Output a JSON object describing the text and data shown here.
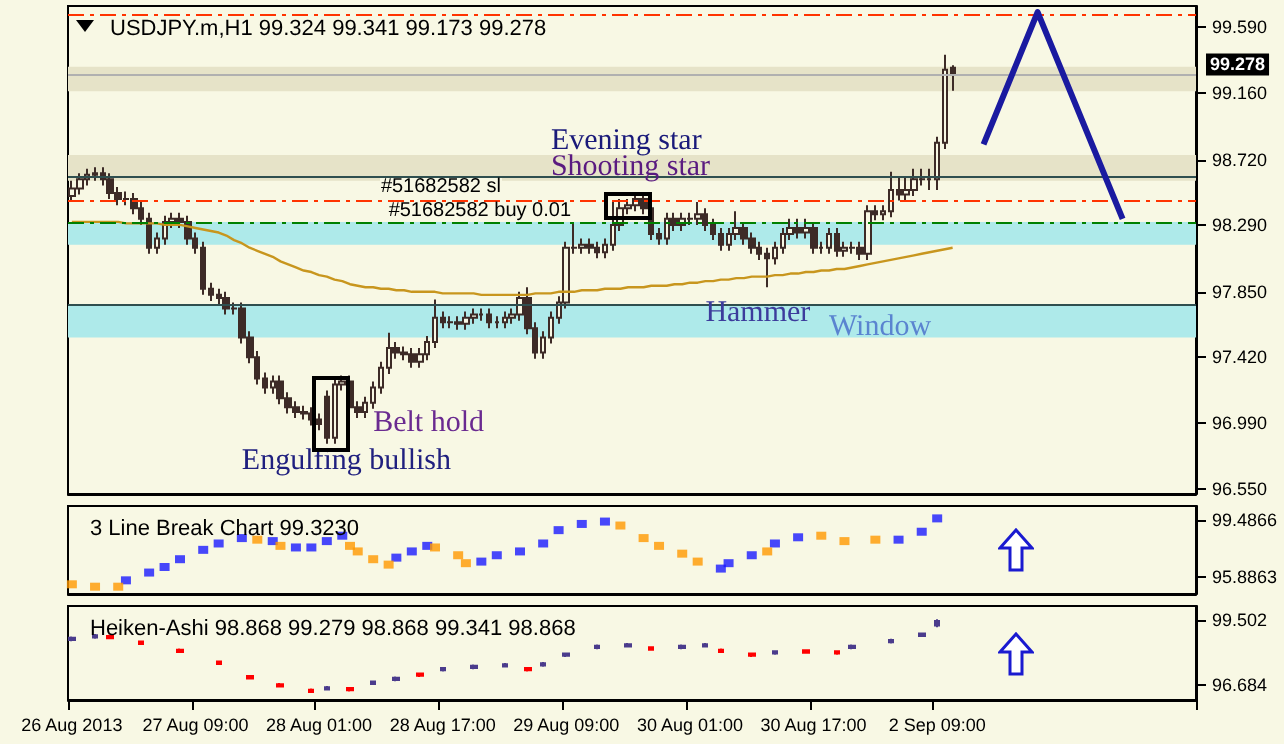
{
  "chart_data": [
    {
      "type": "candlestick",
      "title": "USDJPY.m,H1 99.324 99.341 99.173 99.278",
      "color": "#3d2b27",
      "categories": [
        null,
        null,
        null,
        null,
        null,
        null,
        null,
        null,
        null,
        null,
        null,
        null,
        null,
        null,
        null,
        null,
        null,
        null,
        null,
        null,
        null,
        null,
        null,
        null,
        null,
        null,
        null,
        null,
        null,
        null,
        null,
        null,
        null,
        null,
        null,
        null,
        null,
        null,
        null,
        null,
        null,
        null,
        null,
        null,
        null,
        null,
        null,
        null,
        null,
        null,
        null,
        null,
        null,
        null,
        null,
        null,
        null,
        null,
        null,
        null,
        null,
        null,
        null,
        null,
        null,
        null,
        null,
        null,
        null,
        null,
        null,
        null,
        null,
        null,
        null,
        null,
        null,
        null,
        null,
        null,
        null,
        null,
        null,
        null,
        null,
        null,
        null,
        null,
        null,
        null,
        null,
        null,
        null,
        null,
        null,
        null,
        null,
        null,
        null,
        null,
        null,
        null,
        null,
        null,
        null,
        null,
        null,
        null,
        null,
        null,
        null,
        null,
        null,
        null,
        null,
        null,
        null,
        null,
        null,
        null,
        null,
        null,
        null,
        null,
        null,
        null,
        null,
        null,
        null,
        null,
        null,
        null,
        null,
        null,
        null,
        null,
        null,
        null,
        null,
        null,
        null,
        null,
        null,
        null,
        null,
        null
      ],
      "ohlc": [
        [
          98.48,
          98.58,
          98.44,
          98.53
        ],
        [
          98.53,
          98.63,
          98.49,
          98.59
        ],
        [
          98.59,
          98.66,
          98.55,
          98.62
        ],
        [
          98.62,
          98.67,
          98.58,
          98.63
        ],
        [
          98.63,
          98.67,
          98.55,
          98.59
        ],
        [
          98.59,
          98.63,
          98.46,
          98.5
        ],
        [
          98.5,
          98.54,
          98.42,
          98.46
        ],
        [
          98.46,
          98.51,
          98.42,
          98.46
        ],
        [
          98.46,
          98.5,
          98.36,
          98.4
        ],
        [
          98.4,
          98.44,
          98.29,
          98.33
        ],
        [
          98.33,
          98.37,
          98.1,
          98.14
        ],
        [
          98.14,
          98.24,
          98.1,
          98.2
        ],
        [
          98.2,
          98.35,
          98.16,
          98.31
        ],
        [
          98.31,
          98.37,
          98.27,
          98.33
        ],
        [
          98.33,
          98.37,
          98.27,
          98.31
        ],
        [
          98.31,
          98.35,
          98.16,
          98.2
        ],
        [
          98.2,
          98.24,
          98.1,
          98.14
        ],
        [
          98.14,
          98.18,
          97.83,
          97.87
        ],
        [
          97.87,
          97.91,
          97.79,
          97.83
        ],
        [
          97.83,
          97.87,
          97.77,
          97.81
        ],
        [
          97.81,
          97.85,
          97.7,
          97.74
        ],
        [
          97.74,
          97.78,
          97.7,
          97.74
        ],
        [
          97.74,
          97.78,
          97.51,
          97.55
        ],
        [
          97.55,
          97.59,
          97.38,
          97.42
        ],
        [
          97.42,
          97.46,
          97.24,
          97.28
        ],
        [
          97.28,
          97.32,
          97.18,
          97.22
        ],
        [
          97.22,
          97.3,
          97.18,
          97.26
        ],
        [
          97.26,
          97.3,
          97.11,
          97.15
        ],
        [
          97.15,
          97.19,
          97.05,
          97.09
        ],
        [
          97.09,
          97.13,
          97.02,
          97.06
        ],
        [
          97.06,
          97.1,
          97.01,
          97.05
        ],
        [
          97.05,
          97.09,
          96.97,
          97.01
        ],
        [
          97.01,
          97.05,
          96.94,
          96.98
        ],
        [
          97.16,
          97.2,
          96.85,
          96.89
        ],
        [
          96.89,
          97.28,
          96.85,
          97.24
        ],
        [
          97.24,
          97.3,
          97.2,
          97.26
        ],
        [
          97.26,
          97.3,
          97.05,
          97.09
        ],
        [
          97.09,
          97.13,
          97.02,
          97.06
        ],
        [
          97.06,
          97.16,
          97.02,
          97.12
        ],
        [
          97.12,
          97.26,
          97.08,
          97.22
        ],
        [
          97.22,
          97.39,
          97.18,
          97.35
        ],
        [
          97.35,
          97.58,
          97.31,
          97.48
        ],
        [
          97.48,
          97.52,
          97.41,
          97.45
        ],
        [
          97.45,
          97.49,
          97.4,
          97.44
        ],
        [
          97.44,
          97.48,
          97.35,
          97.39
        ],
        [
          97.39,
          97.48,
          97.35,
          97.44
        ],
        [
          97.44,
          97.56,
          97.4,
          97.52
        ],
        [
          97.52,
          97.8,
          97.48,
          97.68
        ],
        [
          97.68,
          97.72,
          97.61,
          97.65
        ],
        [
          97.65,
          97.69,
          97.61,
          97.65
        ],
        [
          97.65,
          97.69,
          97.6,
          97.64
        ],
        [
          97.64,
          97.72,
          97.6,
          97.68
        ],
        [
          97.68,
          97.74,
          97.64,
          97.7
        ],
        [
          97.7,
          97.74,
          97.66,
          97.7
        ],
        [
          97.7,
          97.74,
          97.61,
          97.65
        ],
        [
          97.65,
          97.69,
          97.61,
          97.65
        ],
        [
          97.65,
          97.72,
          97.61,
          97.68
        ],
        [
          97.68,
          97.74,
          97.64,
          97.7
        ],
        [
          97.7,
          97.85,
          97.66,
          97.81
        ],
        [
          97.81,
          97.88,
          97.57,
          97.61
        ],
        [
          97.61,
          97.65,
          97.41,
          97.45
        ],
        [
          97.45,
          97.59,
          97.41,
          97.55
        ],
        [
          97.55,
          97.72,
          97.51,
          97.68
        ],
        [
          97.68,
          97.82,
          97.64,
          97.78
        ],
        [
          97.78,
          98.18,
          97.74,
          98.14
        ],
        [
          98.14,
          98.3,
          98.1,
          98.14
        ],
        [
          98.14,
          98.2,
          98.1,
          98.16
        ],
        [
          98.16,
          98.2,
          98.1,
          98.14
        ],
        [
          98.14,
          98.18,
          98.07,
          98.11
        ],
        [
          98.11,
          98.2,
          98.07,
          98.16
        ],
        [
          98.16,
          98.44,
          98.12,
          98.29
        ],
        [
          98.29,
          98.46,
          98.25,
          98.4
        ],
        [
          98.4,
          98.46,
          98.36,
          98.42
        ],
        [
          98.42,
          98.5,
          98.38,
          98.46
        ],
        [
          98.46,
          98.5,
          98.36,
          98.4
        ],
        [
          98.4,
          98.44,
          98.19,
          98.23
        ],
        [
          98.23,
          98.27,
          98.16,
          98.2
        ],
        [
          98.2,
          98.37,
          98.16,
          98.33
        ],
        [
          98.33,
          98.37,
          98.25,
          98.29
        ],
        [
          98.29,
          98.37,
          98.25,
          98.33
        ],
        [
          98.33,
          98.37,
          98.29,
          98.33
        ],
        [
          98.33,
          98.44,
          98.29,
          98.36
        ],
        [
          98.36,
          98.4,
          98.25,
          98.29
        ],
        [
          98.29,
          98.33,
          98.19,
          98.23
        ],
        [
          98.23,
          98.27,
          98.12,
          98.16
        ],
        [
          98.16,
          98.27,
          98.12,
          98.23
        ],
        [
          98.23,
          98.38,
          98.19,
          98.27
        ],
        [
          98.27,
          98.31,
          98.16,
          98.2
        ],
        [
          98.2,
          98.24,
          98.1,
          98.14
        ],
        [
          98.14,
          98.18,
          98.06,
          98.1
        ],
        [
          98.1,
          98.14,
          97.88,
          98.07
        ],
        [
          98.07,
          98.18,
          98.03,
          98.14
        ],
        [
          98.14,
          98.27,
          98.1,
          98.23
        ],
        [
          98.23,
          98.33,
          98.19,
          98.27
        ],
        [
          98.27,
          98.33,
          98.2,
          98.24
        ],
        [
          98.24,
          98.33,
          98.2,
          98.27
        ],
        [
          98.27,
          98.31,
          98.1,
          98.14
        ],
        [
          98.14,
          98.18,
          98.1,
          98.14
        ],
        [
          98.14,
          98.27,
          98.1,
          98.23
        ],
        [
          98.23,
          98.27,
          98.08,
          98.12
        ],
        [
          98.12,
          98.18,
          98.08,
          98.14
        ],
        [
          98.14,
          98.18,
          98.1,
          98.14
        ],
        [
          98.14,
          98.18,
          98.06,
          98.1
        ],
        [
          98.1,
          98.42,
          98.06,
          98.38
        ],
        [
          98.38,
          98.42,
          98.32,
          98.36
        ],
        [
          98.36,
          98.42,
          98.32,
          98.38
        ],
        [
          98.38,
          98.64,
          98.34,
          98.52
        ],
        [
          98.52,
          98.6,
          98.45,
          98.49
        ],
        [
          98.49,
          98.6,
          98.45,
          98.52
        ],
        [
          98.52,
          98.66,
          98.48,
          98.59
        ],
        [
          98.59,
          98.66,
          98.55,
          98.59
        ],
        [
          98.59,
          98.66,
          98.52,
          98.59
        ],
        [
          98.59,
          98.87,
          98.52,
          98.83
        ],
        [
          98.83,
          99.41,
          98.79,
          99.31
        ],
        [
          99.324,
          99.341,
          99.173,
          99.278
        ],
        null,
        null,
        null,
        null,
        null,
        null,
        null,
        null,
        null,
        null,
        null,
        null,
        null,
        null,
        null,
        null,
        null,
        null,
        null,
        null,
        null,
        null,
        null,
        null,
        null,
        null,
        null,
        null,
        null,
        null,
        null
      ],
      "series": [
        {
          "type": "line",
          "color": "#c8961e",
          "values": [
            98.31,
            98.31,
            98.31,
            98.31,
            98.31,
            98.31,
            98.31,
            98.3,
            98.3,
            98.3,
            98.3,
            98.3,
            98.29,
            98.29,
            98.29,
            98.28,
            98.27,
            98.26,
            98.25,
            98.24,
            98.22,
            98.19,
            98.17,
            98.14,
            98.12,
            98.1,
            98.08,
            98.05,
            98.03,
            98.01,
            97.99,
            97.98,
            97.96,
            97.95,
            97.93,
            97.92,
            97.9,
            97.89,
            97.88,
            97.88,
            97.87,
            97.87,
            97.86,
            97.86,
            97.85,
            97.85,
            97.85,
            97.85,
            97.84,
            97.84,
            97.84,
            97.84,
            97.84,
            97.83,
            97.83,
            97.83,
            97.83,
            97.83,
            97.83,
            97.83,
            97.84,
            97.84,
            97.84,
            97.85,
            97.85,
            97.85,
            97.86,
            97.86,
            97.86,
            97.87,
            97.87,
            97.87,
            97.88,
            97.88,
            97.88,
            97.89,
            97.89,
            97.89,
            97.9,
            97.9,
            97.91,
            97.91,
            97.92,
            97.92,
            97.93,
            97.93,
            97.94,
            97.94,
            97.95,
            97.95,
            97.95,
            97.96,
            97.96,
            97.97,
            97.97,
            97.98,
            97.98,
            97.99,
            97.99,
            98.0,
            98.0,
            98.01,
            98.02,
            98.03,
            98.04,
            98.05,
            98.06,
            98.07,
            98.08,
            98.09,
            98.1,
            98.11,
            98.12,
            98.13,
            98.14,
            null,
            null,
            null,
            null,
            null,
            null,
            null,
            null,
            null,
            null,
            null,
            null,
            null,
            null,
            null,
            null,
            null,
            null,
            null,
            null,
            null,
            null,
            null,
            null,
            null,
            null,
            null,
            null,
            null,
            null,
            null
          ]
        }
      ],
      "ylim": [
        96.52,
        99.73
      ],
      "yticks": [
        {
          "value": 96.55,
          "label": "96.550"
        },
        {
          "value": 96.99,
          "label": "96.990"
        },
        {
          "value": 97.42,
          "label": "97.420"
        },
        {
          "value": 97.85,
          "label": "97.850"
        },
        {
          "value": 98.29,
          "label": "98.290"
        },
        {
          "value": 98.72,
          "label": "98.720"
        },
        {
          "value": 99.16,
          "label": "99.160"
        },
        {
          "value": 99.59,
          "label": "99.590"
        }
      ],
      "tick_labels": "y",
      "bands": [
        {
          "axis": "y",
          "from": 99.17,
          "to": 99.33,
          "color": "#e6e3c8"
        },
        {
          "axis": "y",
          "from": 98.58,
          "to": 98.75,
          "color": "#e6e3c8"
        },
        {
          "axis": "y",
          "from": 97.55,
          "to": 97.76,
          "color": "#aeeaea"
        },
        {
          "axis": "y",
          "from": 98.16,
          "to": 98.31,
          "color": "#aeeaea"
        }
      ],
      "ref_lines": [
        {
          "axis": "y",
          "value": 99.67,
          "color": "#ff3300",
          "line_style": "dashed"
        },
        {
          "axis": "y",
          "value": 98.45,
          "color": "#ff3300",
          "line_style": "dashed"
        },
        {
          "axis": "y",
          "value": 98.31,
          "color": "#008000",
          "line_style": "dashed"
        },
        {
          "axis": "y",
          "value": 98.61,
          "color": "#2f4f4f"
        },
        {
          "axis": "y",
          "value": 97.76,
          "color": "#2f4f4f"
        },
        {
          "axis": "y",
          "value": 99.278,
          "color": "#b0b0b0",
          "label": "99.278"
        }
      ],
      "annotations": [
        "Evening star",
        "Shooting star",
        "Hammer",
        "Window",
        "Belt hold",
        "Engulfing bullish",
        "#51682582 sl",
        "#51682582 buy 0.01"
      ]
    },
    {
      "type": "scatter",
      "title": "3 Line Break Chart 99.3230",
      "marker": "square",
      "categories": [
        null,
        null,
        null,
        null,
        null,
        null,
        null,
        null,
        null,
        null,
        null,
        null,
        null,
        null,
        null,
        null,
        null,
        null,
        null,
        null,
        null,
        null,
        null,
        null,
        null,
        null,
        null,
        null,
        null,
        null,
        null,
        null,
        null,
        null,
        null,
        null,
        null,
        null,
        null,
        null,
        null,
        null,
        null,
        null,
        null,
        null,
        null,
        null,
        null,
        null,
        null,
        null,
        null,
        null,
        null,
        null,
        null,
        null,
        null,
        null,
        null,
        null,
        null,
        null,
        null,
        null,
        null,
        null,
        null,
        null,
        null,
        null,
        null,
        null,
        null,
        null,
        null,
        null,
        null,
        null,
        null,
        null,
        null,
        null,
        null,
        null,
        null,
        null,
        null,
        null,
        null,
        null,
        null,
        null,
        null,
        null,
        null,
        null,
        null,
        null,
        null,
        null,
        null,
        null,
        null,
        null,
        null,
        null,
        null,
        null,
        null,
        null,
        null,
        null,
        null,
        null,
        null,
        null,
        null,
        null,
        null,
        null,
        null,
        null,
        null,
        null,
        null,
        null,
        null,
        null,
        null,
        null,
        null,
        null,
        null,
        null,
        null,
        null,
        null,
        null,
        null,
        null,
        null,
        null,
        null,
        null
      ],
      "series": [
        {
          "color": "#1a1aff",
          "values": [
            null,
            null,
            null,
            null,
            null,
            null,
            null,
            95.69,
            null,
            null,
            96.18,
            null,
            96.53,
            null,
            97.02,
            null,
            null,
            97.61,
            null,
            98.01,
            null,
            null,
            98.35,
            null,
            null,
            null,
            98.16,
            null,
            null,
            97.76,
            null,
            97.76,
            null,
            98.16,
            null,
            98.5,
            null,
            null,
            null,
            null,
            null,
            null,
            97.12,
            null,
            97.51,
            null,
            97.86,
            null,
            null,
            null,
            null,
            null,
            null,
            96.87,
            null,
            97.27,
            null,
            null,
            97.51,
            null,
            null,
            98.01,
            null,
            98.85,
            null,
            null,
            99.24,
            null,
            null,
            99.39,
            null,
            null,
            null,
            null,
            null,
            null,
            null,
            null,
            null,
            null,
            null,
            null,
            null,
            null,
            96.43,
            96.77,
            null,
            null,
            97.27,
            null,
            null,
            98.01,
            null,
            null,
            98.4,
            null,
            null,
            null,
            null,
            null,
            null,
            null,
            null,
            null,
            null,
            null,
            null,
            98.25,
            null,
            null,
            98.75,
            null,
            99.59,
            null,
            null,
            null,
            null,
            null,
            null,
            null,
            null,
            null,
            null,
            null,
            null,
            null,
            null,
            null,
            null,
            null,
            null,
            null,
            null,
            null,
            null,
            null,
            null,
            null,
            null,
            null,
            null,
            null,
            null,
            null,
            null,
            null
          ]
        },
        {
          "color": "#ff9900",
          "values": [
            95.44,
            null,
            null,
            95.29,
            null,
            null,
            95.29,
            null,
            null,
            null,
            null,
            null,
            null,
            null,
            null,
            null,
            null,
            null,
            null,
            null,
            null,
            null,
            null,
            null,
            98.25,
            null,
            null,
            97.86,
            null,
            null,
            null,
            null,
            null,
            null,
            null,
            null,
            97.86,
            97.51,
            null,
            97.02,
            null,
            96.68,
            null,
            null,
            null,
            null,
            null,
            97.76,
            null,
            null,
            97.27,
            96.77,
            null,
            null,
            null,
            null,
            null,
            null,
            null,
            null,
            null,
            null,
            null,
            null,
            null,
            null,
            null,
            null,
            null,
            null,
            null,
            99.14,
            null,
            null,
            98.35,
            null,
            97.86,
            null,
            null,
            97.37,
            null,
            96.87,
            null,
            null,
            null,
            null,
            null,
            null,
            null,
            null,
            97.51,
            null,
            null,
            null,
            null,
            null,
            null,
            98.5,
            null,
            null,
            98.16,
            null,
            null,
            null,
            98.25,
            null,
            null,
            null,
            null,
            null,
            null,
            null,
            null,
            null,
            null,
            null,
            null,
            null,
            null,
            null,
            null,
            null,
            null,
            null,
            null,
            null,
            null,
            null,
            null,
            null,
            null,
            null,
            null,
            null,
            null,
            null,
            null,
            null,
            null,
            null,
            null,
            null,
            null,
            null,
            null,
            null
          ]
        }
      ],
      "ylim": [
        94.83,
        100.37
      ],
      "yticks": [
        99.4866,
        95.8863
      ],
      "tick_labels": "y"
    },
    {
      "type": "candlestick",
      "title": "Heiken-Ashi 98.868 99.279 98.868 99.341 98.868",
      "categories": [
        "26 Aug 2013",
        null,
        null,
        null,
        null,
        null,
        null,
        null,
        null,
        null,
        null,
        null,
        null,
        null,
        null,
        null,
        "27 Aug 09:00",
        null,
        null,
        null,
        null,
        null,
        null,
        null,
        null,
        null,
        null,
        null,
        null,
        null,
        null,
        null,
        "28 Aug 01:00",
        null,
        null,
        null,
        null,
        null,
        null,
        null,
        null,
        null,
        null,
        null,
        null,
        null,
        null,
        null,
        "28 Aug 17:00",
        null,
        null,
        null,
        null,
        null,
        null,
        null,
        null,
        null,
        null,
        null,
        null,
        null,
        null,
        null,
        "29 Aug 09:00",
        null,
        null,
        null,
        null,
        null,
        null,
        null,
        null,
        null,
        null,
        null,
        null,
        null,
        null,
        null,
        "30 Aug 01:00",
        null,
        null,
        null,
        null,
        null,
        null,
        null,
        null,
        null,
        null,
        null,
        null,
        null,
        null,
        null,
        "30 Aug 17:00",
        null,
        null,
        null,
        null,
        null,
        null,
        null,
        null,
        null,
        null,
        null,
        null,
        null,
        null,
        null,
        "2 Sep 09:00",
        null,
        null,
        null,
        null,
        null,
        null,
        null,
        null,
        null,
        null,
        null,
        null,
        null,
        null,
        null,
        null,
        null,
        null,
        null,
        null,
        null,
        null,
        null,
        null,
        null,
        null,
        null,
        null,
        null,
        null,
        null,
        null,
        null
      ],
      "series": [
        {
          "color": "#4b3c8c",
          "ohlc": [
            [
              98.65,
              98.8,
              98.6,
              98.75
            ],
            null,
            null,
            [
              98.76,
              98.91,
              98.71,
              98.86
            ],
            null,
            null,
            null,
            null,
            null,
            null,
            null,
            null,
            null,
            null,
            null,
            null,
            null,
            null,
            null,
            null,
            null,
            null,
            null,
            null,
            null,
            null,
            null,
            null,
            null,
            null,
            null,
            null,
            null,
            [
              96.5,
              96.65,
              96.45,
              96.6
            ],
            null,
            null,
            null,
            null,
            null,
            [
              96.74,
              96.89,
              96.69,
              96.84
            ],
            null,
            null,
            [
              96.91,
              97.06,
              96.86,
              97.01
            ],
            null,
            null,
            null,
            null,
            null,
            [
              97.33,
              97.48,
              97.28,
              97.43
            ],
            null,
            null,
            null,
            [
              97.43,
              97.58,
              97.38,
              97.53
            ],
            null,
            null,
            null,
            [
              97.5,
              97.65,
              97.45,
              97.6
            ],
            null,
            null,
            null,
            null,
            [
              97.54,
              97.69,
              97.49,
              97.64
            ],
            null,
            null,
            [
              97.96,
              98.11,
              97.91,
              98.06
            ],
            null,
            null,
            null,
            [
              98.3,
              98.45,
              98.25,
              98.4
            ],
            null,
            null,
            null,
            [
              98.37,
              98.52,
              98.32,
              98.47
            ],
            null,
            null,
            null,
            null,
            null,
            null,
            [
              98.3,
              98.45,
              98.25,
              98.4
            ],
            null,
            null,
            [
              98.37,
              98.52,
              98.32,
              98.47
            ],
            null,
            null,
            null,
            null,
            null,
            null,
            null,
            null,
            [
              98.06,
              98.21,
              98.01,
              98.16
            ],
            null,
            null,
            null,
            null,
            null,
            null,
            null,
            null,
            null,
            [
              98.3,
              98.45,
              98.25,
              98.4
            ],
            null,
            null,
            null,
            null,
            [
              98.55,
              98.7,
              98.5,
              98.65
            ],
            null,
            null,
            null,
            [
              98.83,
              98.98,
              98.78,
              98.93
            ],
            null,
            [
              99.28,
              99.55,
              99.2,
              99.48
            ],
            null,
            null,
            null,
            null,
            null,
            null,
            null,
            null,
            null,
            null,
            null,
            null,
            null,
            null,
            null,
            null,
            null,
            null,
            null,
            null,
            null,
            null,
            null,
            null,
            null,
            null,
            null,
            null,
            null,
            null,
            null,
            null,
            null
          ]
        },
        {
          "color": "#ff0000",
          "ohlc": [
            null,
            null,
            null,
            null,
            null,
            [
              98.83,
              98.88,
              98.68,
              98.73
            ],
            null,
            null,
            null,
            [
              98.58,
              98.63,
              98.43,
              98.48
            ],
            null,
            null,
            null,
            null,
            [
              98.23,
              98.28,
              98.08,
              98.13
            ],
            null,
            null,
            null,
            null,
            [
              97.71,
              97.76,
              97.56,
              97.61
            ],
            null,
            null,
            null,
            [
              97.08,
              97.13,
              96.93,
              96.98
            ],
            null,
            null,
            null,
            [
              96.73,
              96.78,
              96.58,
              96.63
            ],
            null,
            null,
            null,
            [
              96.49,
              96.54,
              96.34,
              96.39
            ],
            null,
            null,
            null,
            null,
            [
              96.56,
              96.61,
              96.41,
              96.46
            ],
            null,
            null,
            null,
            null,
            null,
            null,
            null,
            null,
            [
              97.19,
              97.24,
              97.04,
              97.09
            ],
            null,
            null,
            null,
            null,
            null,
            null,
            null,
            null,
            null,
            null,
            null,
            null,
            null,
            [
              97.43,
              97.48,
              97.28,
              97.33
            ],
            null,
            null,
            null,
            null,
            null,
            null,
            null,
            null,
            null,
            null,
            null,
            null,
            null,
            null,
            null,
            [
              98.33,
              98.38,
              98.18,
              98.23
            ],
            null,
            null,
            null,
            null,
            null,
            null,
            null,
            null,
            [
              98.23,
              98.28,
              98.08,
              98.13
            ],
            null,
            null,
            null,
            [
              98.06,
              98.11,
              97.91,
              97.96
            ],
            null,
            null,
            null,
            null,
            null,
            null,
            [
              98.2,
              98.25,
              98.05,
              98.1
            ],
            null,
            null,
            null,
            [
              98.16,
              98.21,
              98.01,
              98.06
            ],
            null,
            null,
            null,
            null,
            null,
            null,
            null,
            null,
            null,
            null,
            null,
            null,
            null,
            null,
            null,
            null,
            null,
            null,
            null,
            null,
            null,
            null,
            null,
            null,
            null,
            null,
            null,
            null,
            null,
            null,
            null,
            null,
            null,
            null,
            null,
            null,
            null,
            null,
            null,
            null,
            null,
            null,
            null,
            null,
            null,
            null
          ]
        }
      ],
      "ylim": [
        96.04,
        100.13
      ],
      "yticks": [
        99.502,
        96.684
      ]
    }
  ]
}
